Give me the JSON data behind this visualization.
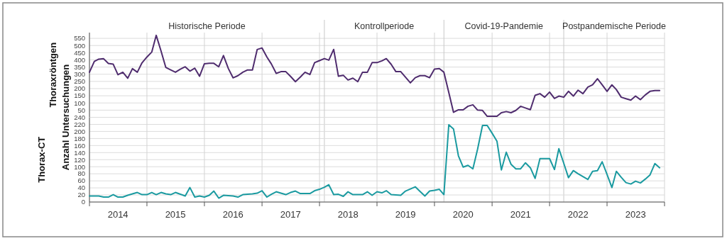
{
  "chart_data": [
    {
      "type": "line",
      "ylabel": "Thoraxröntgen",
      "x": [
        "2014-01",
        "2014-02",
        "2014-03",
        "2014-04",
        "2014-05",
        "2014-06",
        "2014-07",
        "2014-08",
        "2014-09",
        "2014-10",
        "2014-11",
        "2014-12",
        "2015-01",
        "2015-02",
        "2015-03",
        "2015-04",
        "2015-05",
        "2015-06",
        "2015-07",
        "2015-08",
        "2015-09",
        "2015-10",
        "2015-11",
        "2015-12",
        "2016-01",
        "2016-02",
        "2016-03",
        "2016-04",
        "2016-05",
        "2016-06",
        "2016-07",
        "2016-08",
        "2016-09",
        "2016-10",
        "2016-11",
        "2016-12",
        "2017-01",
        "2017-02",
        "2017-03",
        "2017-04",
        "2017-05",
        "2017-06",
        "2017-07",
        "2017-08",
        "2017-09",
        "2017-10",
        "2017-11",
        "2017-12",
        "2018-01",
        "2018-02",
        "2018-03",
        "2018-04",
        "2018-05",
        "2018-06",
        "2018-07",
        "2018-08",
        "2018-09",
        "2018-10",
        "2018-11",
        "2018-12",
        "2019-01",
        "2019-02",
        "2019-03",
        "2019-04",
        "2019-05",
        "2019-06",
        "2019-07",
        "2019-08",
        "2019-09",
        "2019-10",
        "2019-11",
        "2019-12",
        "2020-01",
        "2020-02",
        "2020-03",
        "2020-04",
        "2020-05",
        "2020-06",
        "2020-07",
        "2020-08",
        "2020-09",
        "2020-10",
        "2020-11",
        "2020-12",
        "2021-01",
        "2021-02",
        "2021-03",
        "2021-04",
        "2021-05",
        "2021-06",
        "2021-07",
        "2021-08",
        "2021-09",
        "2021-10",
        "2021-11",
        "2021-12",
        "2022-01",
        "2022-02",
        "2022-03",
        "2022-04",
        "2022-05",
        "2022-06",
        "2022-07",
        "2022-08",
        "2022-09",
        "2022-10",
        "2022-11",
        "2022-12",
        "2023-01",
        "2023-02",
        "2023-03",
        "2023-04",
        "2023-05",
        "2023-06",
        "2023-07",
        "2023-08",
        "2023-09",
        "2023-10",
        "2023-11",
        "2023-12"
      ],
      "series": [
        {
          "color": "#4f2c6e",
          "values": [
            314,
            389,
            405,
            408,
            375,
            370,
            297,
            314,
            272,
            339,
            314,
            380,
            420,
            455,
            571,
            460,
            347,
            330,
            314,
            335,
            352,
            322,
            342,
            286,
            373,
            376,
            376,
            352,
            430,
            340,
            275,
            290,
            314,
            330,
            330,
            472,
            483,
            420,
            372,
            306,
            318,
            318,
            285,
            248,
            280,
            314,
            298,
            381,
            395,
            409,
            398,
            473,
            286,
            293,
            260,
            273,
            248,
            314,
            314,
            381,
            381,
            393,
            409,
            369,
            318,
            318,
            280,
            240,
            276,
            290,
            290,
            276,
            336,
            339,
            314,
            173,
            35,
            52,
            52,
            77,
            87,
            50,
            48,
            7,
            7,
            7,
            32,
            40,
            32,
            48,
            77,
            65,
            53,
            153,
            165,
            140,
            176,
            131,
            148,
            140,
            181,
            148,
            189,
            165,
            210,
            226,
            269,
            226,
            181,
            226,
            193,
            140,
            130,
            120,
            148,
            123,
            156,
            181,
            186,
            186
          ]
        }
      ],
      "xlim": [
        "2014-01-01",
        "2024-01-01"
      ],
      "xticks": [
        {
          "value": "2014-01-01",
          "label": null
        },
        {
          "value": "2015-01-01",
          "label": null
        },
        {
          "value": "2016-01-01",
          "label": null
        },
        {
          "value": "2017-01-01",
          "label": null
        },
        {
          "value": "2018-01-01",
          "label": null
        },
        {
          "value": "2019-01-01",
          "label": null
        },
        {
          "value": "2020-01-01",
          "label": null
        },
        {
          "value": "2021-01-01",
          "label": null
        },
        {
          "value": "2022-01-01",
          "label": null
        },
        {
          "value": "2023-01-01",
          "label": null
        },
        {
          "value": "2024-01-01",
          "label": null
        }
      ],
      "ylim": [
        0,
        590
      ],
      "yticks": [
        50,
        100,
        150,
        200,
        250,
        300,
        350,
        400,
        450,
        500,
        550
      ],
      "grid": true,
      "tick_labels": "y",
      "annotations": [
        "Historische Periode",
        "Kontrollperiode",
        "Covid-19-Pandemie",
        "Postpandemische Periode"
      ],
      "ref_lines": [
        {
          "axis": "x",
          "value": "2018-02-01"
        },
        {
          "axis": "x",
          "value": "2020-03-01"
        },
        {
          "axis": "x",
          "value": "2022-04-01"
        }
      ]
    },
    {
      "type": "line",
      "ylabel": "Thorax-CT",
      "annotations": [
        "Anzahl Untersuchungen"
      ],
      "x": [
        "2014-01",
        "2014-02",
        "2014-03",
        "2014-04",
        "2014-05",
        "2014-06",
        "2014-07",
        "2014-08",
        "2014-09",
        "2014-10",
        "2014-11",
        "2014-12",
        "2015-01",
        "2015-02",
        "2015-03",
        "2015-04",
        "2015-05",
        "2015-06",
        "2015-07",
        "2015-08",
        "2015-09",
        "2015-10",
        "2015-11",
        "2015-12",
        "2016-01",
        "2016-02",
        "2016-03",
        "2016-04",
        "2016-05",
        "2016-06",
        "2016-07",
        "2016-08",
        "2016-09",
        "2016-10",
        "2016-11",
        "2016-12",
        "2017-01",
        "2017-02",
        "2017-03",
        "2017-04",
        "2017-05",
        "2017-06",
        "2017-07",
        "2017-08",
        "2017-09",
        "2017-10",
        "2017-11",
        "2017-12",
        "2018-01",
        "2018-02",
        "2018-03",
        "2018-04",
        "2018-05",
        "2018-06",
        "2018-07",
        "2018-08",
        "2018-09",
        "2018-10",
        "2018-11",
        "2018-12",
        "2019-01",
        "2019-02",
        "2019-03",
        "2019-04",
        "2019-05",
        "2019-06",
        "2019-07",
        "2019-08",
        "2019-09",
        "2019-10",
        "2019-11",
        "2019-12",
        "2020-01",
        "2020-02",
        "2020-03",
        "2020-04",
        "2020-05",
        "2020-06",
        "2020-07",
        "2020-08",
        "2020-09",
        "2020-10",
        "2020-11",
        "2020-12",
        "2021-01",
        "2021-02",
        "2021-03",
        "2021-04",
        "2021-05",
        "2021-06",
        "2021-07",
        "2021-08",
        "2021-09",
        "2021-10",
        "2021-11",
        "2021-12",
        "2022-01",
        "2022-02",
        "2022-03",
        "2022-04",
        "2022-05",
        "2022-06",
        "2022-07",
        "2022-08",
        "2022-09",
        "2022-10",
        "2022-11",
        "2022-12",
        "2023-01",
        "2023-02",
        "2023-03",
        "2023-04",
        "2023-05",
        "2023-06",
        "2023-07",
        "2023-08",
        "2023-09",
        "2023-10",
        "2023-11",
        "2023-12"
      ],
      "series": [
        {
          "color": "#1a9aa0",
          "values": [
            17,
            17,
            17,
            14,
            14,
            21,
            14,
            14,
            19,
            23,
            27,
            21,
            21,
            27,
            21,
            27,
            23,
            21,
            27,
            22,
            17,
            41,
            14,
            17,
            14,
            19,
            31,
            11,
            19,
            18,
            17,
            14,
            21,
            22,
            23,
            25,
            32,
            14,
            22,
            29,
            25,
            21,
            27,
            31,
            24,
            24,
            24,
            32,
            36,
            42,
            49,
            21,
            22,
            16,
            29,
            21,
            21,
            21,
            29,
            19,
            29,
            26,
            32,
            21,
            20,
            19,
            31,
            37,
            43,
            30,
            17,
            31,
            33,
            36,
            21,
            219,
            207,
            131,
            99,
            104,
            94,
            150,
            217,
            217,
            195,
            172,
            91,
            141,
            107,
            94,
            94,
            111,
            97,
            67,
            123,
            123,
            123,
            92,
            151,
            110,
            69,
            89,
            80,
            72,
            64,
            87,
            89,
            114,
            78,
            41,
            87,
            70,
            55,
            51,
            59,
            54,
            65,
            77,
            109,
            97
          ]
        }
      ],
      "xlim": [
        "2014-01-01",
        "2024-01-01"
      ],
      "xticks": [
        {
          "value": "2014-01-01",
          "label": null
        },
        {
          "value": "2014-07-01",
          "label": "2014"
        },
        {
          "value": "2015-01-01",
          "label": null
        },
        {
          "value": "2015-07-01",
          "label": "2015"
        },
        {
          "value": "2016-01-01",
          "label": null
        },
        {
          "value": "2016-07-01",
          "label": "2016"
        },
        {
          "value": "2017-01-01",
          "label": null
        },
        {
          "value": "2017-07-01",
          "label": "2017"
        },
        {
          "value": "2018-01-01",
          "label": null
        },
        {
          "value": "2018-07-01",
          "label": "2018"
        },
        {
          "value": "2019-01-01",
          "label": null
        },
        {
          "value": "2019-07-01",
          "label": "2019"
        },
        {
          "value": "2020-01-01",
          "label": null
        },
        {
          "value": "2020-07-01",
          "label": "2020"
        },
        {
          "value": "2021-01-01",
          "label": null
        },
        {
          "value": "2021-07-01",
          "label": "2021"
        },
        {
          "value": "2022-01-01",
          "label": null
        },
        {
          "value": "2022-07-01",
          "label": "2022"
        },
        {
          "value": "2023-01-01",
          "label": null
        },
        {
          "value": "2023-07-01",
          "label": "2023"
        },
        {
          "value": "2024-01-01",
          "label": null
        }
      ],
      "ylim": [
        0,
        240
      ],
      "yticks": [
        0,
        20,
        40,
        60,
        80,
        100,
        120,
        140,
        160,
        180,
        200,
        220,
        240
      ],
      "grid": true
    }
  ]
}
